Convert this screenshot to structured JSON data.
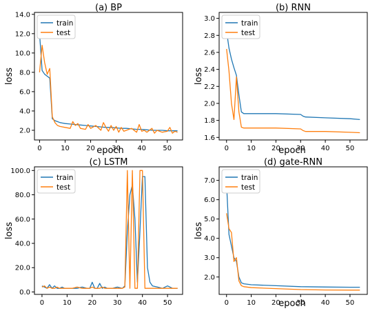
{
  "colors": {
    "train": "#1f77b4",
    "test": "#ff7f0e"
  },
  "chart_data": [
    {
      "type": "line",
      "title": "(a)  BP",
      "xlabel": "epoch",
      "ylabel": "loss",
      "xlim": [
        -2,
        56
      ],
      "ylim": [
        1.0,
        14.2
      ],
      "xticks": [
        0,
        10,
        20,
        30,
        40,
        50
      ],
      "xticklabels": [
        "0",
        "10",
        "20",
        "30",
        "40",
        "50"
      ],
      "yticks": [
        2.0,
        4.0,
        6.0,
        8.0,
        10.0,
        12.0,
        14.0
      ],
      "yticklabels": [
        "2.0",
        "4.0",
        "6.0",
        "8.0",
        "10.0",
        "12.0",
        "14.0"
      ],
      "legend_position": "upper-left",
      "series": [
        {
          "name": "train",
          "color_key": "train",
          "x": [
            0,
            1,
            2,
            3,
            4,
            5,
            6,
            7,
            8,
            9,
            10,
            12,
            14,
            16,
            18,
            20,
            22,
            24,
            26,
            28,
            30,
            32,
            34,
            36,
            38,
            40,
            42,
            44,
            46,
            48,
            50,
            52,
            54
          ],
          "y": [
            12.0,
            8.2,
            7.8,
            7.6,
            7.4,
            3.2,
            3.0,
            2.9,
            2.8,
            2.75,
            2.7,
            2.65,
            2.6,
            2.55,
            2.5,
            2.45,
            2.4,
            2.35,
            2.3,
            2.3,
            2.25,
            2.2,
            2.2,
            2.15,
            2.1,
            2.1,
            2.05,
            2.0,
            2.0,
            2.0,
            1.95,
            1.95,
            1.95
          ]
        },
        {
          "name": "test",
          "color_key": "test",
          "x": [
            0,
            1,
            2,
            3,
            4,
            5,
            6,
            7,
            8,
            10,
            12,
            13,
            14,
            15,
            16,
            18,
            19,
            20,
            22,
            24,
            25,
            26,
            27,
            28,
            29,
            30,
            31,
            32,
            33,
            34,
            36,
            38,
            39,
            40,
            41,
            42,
            44,
            45,
            46,
            47,
            48,
            50,
            51,
            52,
            53,
            54
          ],
          "y": [
            8.0,
            10.8,
            9.0,
            7.8,
            8.4,
            3.4,
            2.8,
            2.5,
            2.4,
            2.3,
            2.2,
            2.9,
            2.5,
            2.7,
            2.2,
            2.1,
            2.6,
            2.2,
            2.5,
            2.0,
            2.8,
            2.3,
            1.9,
            2.5,
            2.0,
            2.4,
            1.8,
            2.3,
            1.9,
            2.0,
            2.2,
            1.8,
            2.6,
            1.9,
            2.0,
            1.8,
            2.2,
            1.7,
            2.0,
            1.9,
            1.8,
            1.9,
            2.3,
            1.7,
            1.9,
            1.8
          ]
        }
      ]
    },
    {
      "type": "line",
      "title": "(b)  RNN",
      "xlabel": "epoch",
      "ylabel": "loss",
      "xlim": [
        -3,
        57
      ],
      "ylim": [
        1.57,
        3.07
      ],
      "xticks": [
        0,
        10,
        20,
        30,
        40,
        50
      ],
      "xticklabels": [
        "0",
        "10",
        "20",
        "30",
        "40",
        "50"
      ],
      "yticks": [
        1.6,
        1.8,
        2.0,
        2.2,
        2.4,
        2.6,
        2.8,
        3.0
      ],
      "yticklabels": [
        "1.6",
        "1.8",
        "2.0",
        "2.2",
        "2.4",
        "2.6",
        "2.8",
        "3.0"
      ],
      "legend_position": "upper-left",
      "series": [
        {
          "name": "train",
          "color_key": "train",
          "x": [
            0,
            1,
            2,
            3,
            4,
            5,
            6,
            7,
            10,
            20,
            30,
            31,
            32,
            40,
            50,
            54
          ],
          "y": [
            2.85,
            2.65,
            2.52,
            2.42,
            2.33,
            2.1,
            1.9,
            1.88,
            1.88,
            1.88,
            1.87,
            1.85,
            1.84,
            1.83,
            1.82,
            1.81
          ]
        },
        {
          "name": "test",
          "color_key": "test",
          "x": [
            0,
            1,
            2,
            3,
            4,
            5,
            6,
            7,
            10,
            20,
            30,
            31,
            32,
            40,
            50,
            54
          ],
          "y": [
            2.64,
            2.38,
            2.0,
            1.81,
            2.31,
            1.9,
            1.72,
            1.71,
            1.71,
            1.71,
            1.7,
            1.68,
            1.67,
            1.67,
            1.66,
            1.655
          ]
        }
      ]
    },
    {
      "type": "line",
      "title": "(c)  LSTM",
      "xlabel": "",
      "ylabel": "loss",
      "xlim": [
        -3,
        56
      ],
      "ylim": [
        -2,
        103
      ],
      "xticks": [
        0,
        10,
        20,
        30,
        40,
        50
      ],
      "xticklabels": [
        "0",
        "10",
        "20",
        "30",
        "40",
        "50"
      ],
      "yticks": [
        0.0,
        20.0,
        40.0,
        60.0,
        80.0,
        100.0
      ],
      "yticklabels": [
        "0.0",
        "20.0",
        "40.0",
        "60.0",
        "80.0",
        "100.0"
      ],
      "legend_position": "upper-left",
      "series": [
        {
          "name": "train",
          "color_key": "train",
          "x": [
            0,
            1,
            2,
            3,
            4,
            5,
            6,
            7,
            8,
            9,
            10,
            12,
            14,
            16,
            18,
            19,
            20,
            21,
            22,
            23,
            24,
            25,
            26,
            28,
            30,
            32,
            33,
            34,
            35,
            36,
            37,
            38,
            39,
            40,
            41,
            42,
            43,
            44,
            46,
            48,
            50,
            52,
            54
          ],
          "y": [
            5,
            4,
            3,
            6,
            3,
            5,
            3,
            3,
            4,
            3,
            3,
            3,
            3,
            4,
            3,
            3,
            8,
            3,
            3,
            7,
            3,
            4,
            3,
            3,
            4,
            3,
            5,
            50,
            80,
            88,
            60,
            8,
            50,
            95,
            95,
            20,
            8,
            5,
            4,
            3,
            5,
            3,
            3
          ]
        },
        {
          "name": "test",
          "color_key": "test",
          "x": [
            0,
            1,
            2,
            3,
            4,
            5,
            6,
            7,
            8,
            9,
            10,
            12,
            14,
            16,
            18,
            19,
            20,
            21,
            22,
            23,
            24,
            25,
            26,
            28,
            30,
            32,
            33,
            34,
            35,
            36,
            37,
            38,
            39,
            40,
            41,
            42,
            43,
            44,
            46,
            48,
            50,
            52,
            54
          ],
          "y": [
            4,
            5,
            3,
            4,
            3,
            3,
            4,
            3,
            3,
            3,
            3,
            3,
            4,
            3,
            3,
            3,
            4,
            3,
            3,
            3,
            4,
            3,
            3,
            3,
            3,
            3,
            4,
            100,
            3,
            100,
            3,
            3,
            100,
            100,
            3,
            3,
            3,
            3,
            3,
            3,
            3,
            3,
            3
          ]
        }
      ]
    },
    {
      "type": "line",
      "title": "(d)  gate-RNN",
      "xlabel": "epoch",
      "ylabel": "loss",
      "xlim": [
        -3,
        57
      ],
      "ylim": [
        1.1,
        7.7
      ],
      "xticks": [
        0,
        10,
        20,
        30,
        40,
        50
      ],
      "xticklabels": [
        "0",
        "10",
        "20",
        "30",
        "40",
        "50"
      ],
      "yticks": [
        2.0,
        3.0,
        4.0,
        5.0,
        6.0,
        7.0
      ],
      "yticklabels": [
        "2.0",
        "3.0",
        "4.0",
        "5.0",
        "6.0",
        "7.0"
      ],
      "legend_position": "upper-left",
      "series": [
        {
          "name": "train",
          "color_key": "train",
          "x": [
            0,
            1,
            2,
            3,
            4,
            5,
            6,
            7,
            10,
            20,
            30,
            40,
            50,
            54
          ],
          "y": [
            6.8,
            4.2,
            3.6,
            3.0,
            2.8,
            2.0,
            1.7,
            1.65,
            1.6,
            1.55,
            1.5,
            1.48,
            1.47,
            1.47
          ]
        },
        {
          "name": "test",
          "color_key": "test",
          "x": [
            0,
            1,
            2,
            3,
            4,
            5,
            6,
            7,
            10,
            20,
            30,
            40,
            50,
            54
          ],
          "y": [
            5.3,
            4.5,
            4.3,
            2.8,
            3.0,
            1.8,
            1.55,
            1.5,
            1.45,
            1.4,
            1.35,
            1.33,
            1.32,
            1.32
          ]
        }
      ]
    }
  ]
}
